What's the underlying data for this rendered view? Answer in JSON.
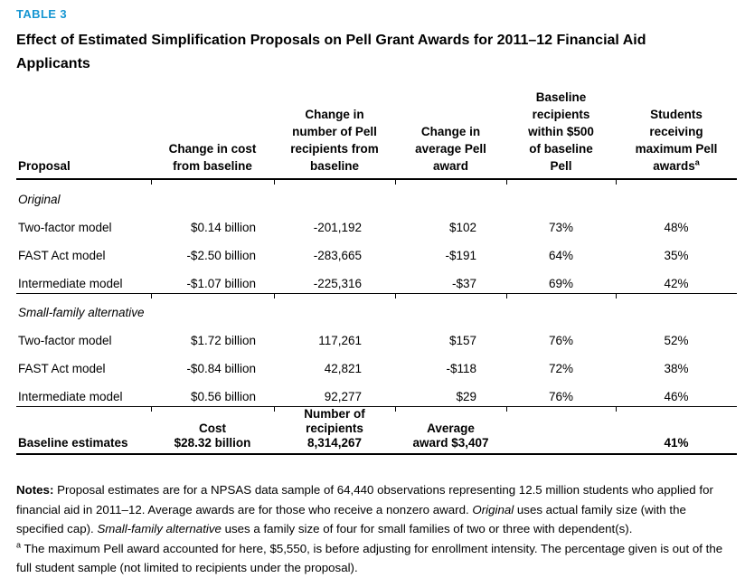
{
  "header": {
    "table_label": "TABLE 3",
    "title": "Effect of Estimated Simplification Proposals on Pell Grant Awards for 2011–12 Financial Aid Applicants"
  },
  "table": {
    "columns": [
      "Proposal",
      "Change in cost\nfrom baseline",
      "Change in\nnumber of Pell\nrecipients from\nbaseline",
      "Change in\naverage Pell\naward",
      "Baseline\nrecipients\nwithin $500\nof baseline\nPell",
      "Students\nreceiving\nmaximum Pell\nawards"
    ],
    "column6_superscript": "a",
    "sections": [
      {
        "label": "Original",
        "rows": [
          {
            "proposal": "Two-factor model",
            "cost": "$0.14 billion",
            "recipients": "-201,192",
            "award": "$102",
            "within_500": "73%",
            "max_awards": "48%"
          },
          {
            "proposal": "FAST Act model",
            "cost": "-$2.50 billion",
            "recipients": "-283,665",
            "award": "-$191",
            "within_500": "64%",
            "max_awards": "35%"
          },
          {
            "proposal": "Intermediate model",
            "cost": "-$1.07 billion",
            "recipients": "-225,316",
            "award": "-$37",
            "within_500": "69%",
            "max_awards": "42%"
          }
        ]
      },
      {
        "label": "Small-family alternative",
        "rows": [
          {
            "proposal": "Two-factor model",
            "cost": "$1.72 billion",
            "recipients": "117,261",
            "award": "$157",
            "within_500": "76%",
            "max_awards": "52%"
          },
          {
            "proposal": "FAST Act model",
            "cost": "-$0.84 billion",
            "recipients": "42,821",
            "award": "-$118",
            "within_500": "72%",
            "max_awards": "38%"
          },
          {
            "proposal": "Intermediate model",
            "cost": "$0.56 billion",
            "recipients": "92,277",
            "award": "$29",
            "within_500": "76%",
            "max_awards": "46%"
          }
        ]
      }
    ],
    "baseline": {
      "label": "Baseline estimates",
      "cost": "Cost\n$28.32 billion",
      "recipients": "Number of\nrecipients\n8,314,267",
      "award": "Average\naward $3,407",
      "within_500": "",
      "max_awards": "41%"
    }
  },
  "notes": {
    "label": "Notes:",
    "body_1": " Proposal estimates are for a NPSAS data sample of 64,440 observations representing 12.5 million students who applied for financial aid in 2011–12. Average awards are for those who receive a nonzero award. ",
    "italic_1": "Original",
    "body_2": " uses actual family size (with the specified cap). ",
    "italic_2": "Small-family alternative",
    "body_3": " uses a family size of four for small families of two or three with dependent(s).",
    "footnote_marker": "a",
    "footnote": " The maximum Pell award accounted for here, $5,550, is before adjusting for enrollment intensity. The percentage given is out of the full student sample (not limited to recipients under the proposal)."
  },
  "colors": {
    "accent": "#1696d2",
    "text": "#000000",
    "rule": "#000000"
  }
}
